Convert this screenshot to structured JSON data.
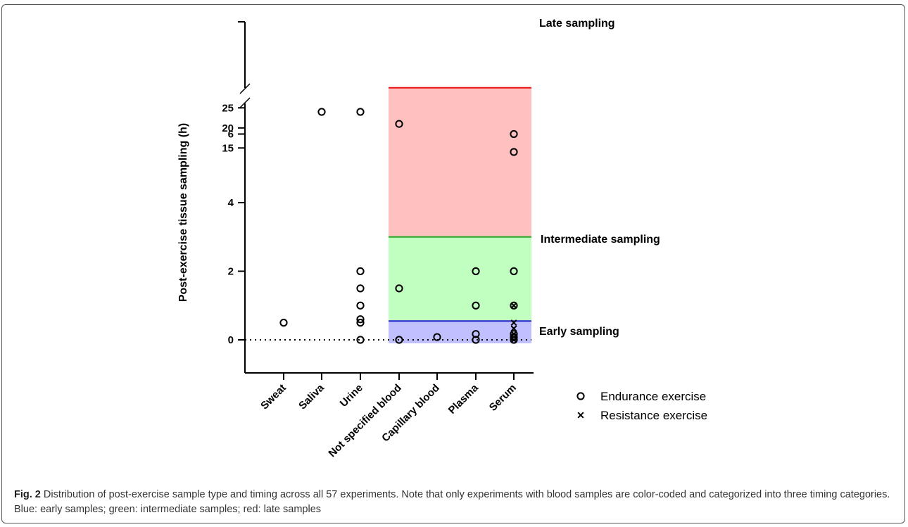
{
  "chart_data": {
    "type": "scatter",
    "title": "",
    "ylabel": "Post-exercise tissue sampling (h)",
    "categories": [
      "Sweat",
      "Saliva",
      "Urine",
      "Not specified blood",
      "Capillary blood",
      "Plasma",
      "Serum"
    ],
    "y_ticks_lower": [
      "0",
      "2",
      "4",
      "6"
    ],
    "y_ticks_upper": [
      "15",
      "20",
      "25"
    ],
    "y_axis_break": [
      7,
      14
    ],
    "series": [
      {
        "name": "Endurance exercise",
        "marker": "circle",
        "points": [
          {
            "x": "Sweat",
            "y": 0.5
          },
          {
            "x": "Saliva",
            "y": 24
          },
          {
            "x": "Urine",
            "y": 24
          },
          {
            "x": "Urine",
            "y": 2
          },
          {
            "x": "Urine",
            "y": 1.5
          },
          {
            "x": "Urine",
            "y": 1
          },
          {
            "x": "Urine",
            "y": 0.6
          },
          {
            "x": "Urine",
            "y": 0.5
          },
          {
            "x": "Urine",
            "y": 0
          },
          {
            "x": "Not specified blood",
            "y": 21
          },
          {
            "x": "Not specified blood",
            "y": 1.5
          },
          {
            "x": "Not specified blood",
            "y": 0
          },
          {
            "x": "Capillary blood",
            "y": 0.08
          },
          {
            "x": "Plasma",
            "y": 2
          },
          {
            "x": "Plasma",
            "y": 1
          },
          {
            "x": "Plasma",
            "y": 0.17
          },
          {
            "x": "Plasma",
            "y": 0
          },
          {
            "x": "Serum",
            "y": 14
          },
          {
            "x": "Serum",
            "y": 6
          },
          {
            "x": "Serum",
            "y": 2
          },
          {
            "x": "Serum",
            "y": 1
          },
          {
            "x": "Serum",
            "y": 0.17
          },
          {
            "x": "Serum",
            "y": 0.08
          },
          {
            "x": "Serum",
            "y": 0
          }
        ]
      },
      {
        "name": "Resistance exercise",
        "marker": "cross",
        "points": [
          {
            "x": "Serum",
            "y": 1
          },
          {
            "x": "Serum",
            "y": 0.5
          },
          {
            "x": "Serum",
            "y": 0.33
          },
          {
            "x": "Serum",
            "y": 0.17
          },
          {
            "x": "Serum",
            "y": 0
          }
        ]
      }
    ],
    "bands": [
      {
        "label": "Late sampling",
        "from": 3,
        "to": 30,
        "fill": "#ffc0c0",
        "line": "#ee1111"
      },
      {
        "label": "Intermediate sampling",
        "from": 0.55,
        "to": 3,
        "fill": "#c0ffc0",
        "line": "#22aa22"
      },
      {
        "label": "Early sampling",
        "from": -0.1,
        "to": 0.55,
        "fill": "#c0c0ff",
        "line": "#2222cc"
      }
    ],
    "reference_line": {
      "y": 0,
      "style": "dotted"
    },
    "legend": {
      "placement": "bottom-right",
      "items": [
        {
          "label": "Endurance exercise",
          "marker": "circle"
        },
        {
          "label": "Resistance exercise",
          "marker": "cross"
        }
      ]
    }
  },
  "caption": {
    "label": "Fig. 2",
    "text": " Distribution of post-exercise sample type and timing across all 57 experiments. Note that only experiments with blood samples are color-coded and categorized into three timing categories. Blue: early samples; green: intermediate samples; red: late samples"
  }
}
